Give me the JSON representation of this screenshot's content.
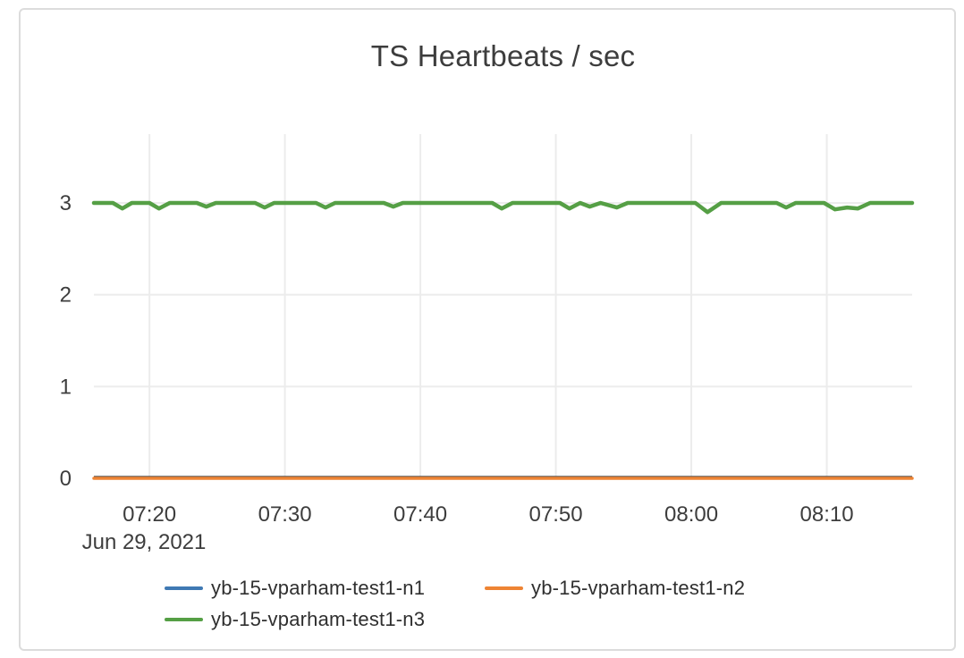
{
  "chart_data": {
    "type": "line",
    "title": "TS Heartbeats / sec",
    "grid": true,
    "legend_position": "bottom",
    "x_axis": {
      "date_label": "Jun 29, 2021",
      "range": [
        435.9,
        496.3
      ],
      "ticks": [
        {
          "t": 440,
          "label": "07:20"
        },
        {
          "t": 450,
          "label": "07:30"
        },
        {
          "t": 460,
          "label": "07:40"
        },
        {
          "t": 470,
          "label": "07:50"
        },
        {
          "t": 480,
          "label": "08:00"
        },
        {
          "t": 490,
          "label": "08:10"
        }
      ]
    },
    "y_axis": {
      "range": [
        0,
        3.75
      ],
      "ticks": [
        0,
        1,
        2,
        3
      ]
    },
    "series": [
      {
        "name": "yb-15-vparham-test1-n1",
        "color": "#3f79b3",
        "points": [
          [
            435.9,
            0
          ],
          [
            496.3,
            0
          ]
        ]
      },
      {
        "name": "yb-15-vparham-test1-n2",
        "color": "#ee8434",
        "points": [
          [
            435.9,
            0
          ],
          [
            496.3,
            0
          ]
        ]
      },
      {
        "name": "yb-15-vparham-test1-n3",
        "color": "#559f45",
        "points": [
          [
            435.9,
            3
          ],
          [
            437.3,
            3
          ],
          [
            438,
            2.94
          ],
          [
            438.7,
            3
          ],
          [
            440,
            3
          ],
          [
            440.7,
            2.94
          ],
          [
            441.5,
            3
          ],
          [
            443.5,
            3
          ],
          [
            444.2,
            2.96
          ],
          [
            444.9,
            3
          ],
          [
            447.8,
            3
          ],
          [
            448.5,
            2.95
          ],
          [
            449.2,
            3
          ],
          [
            452.3,
            3
          ],
          [
            453,
            2.95
          ],
          [
            453.7,
            3
          ],
          [
            457.3,
            3
          ],
          [
            458,
            2.96
          ],
          [
            458.7,
            3
          ],
          [
            465.3,
            3
          ],
          [
            466,
            2.94
          ],
          [
            466.8,
            3
          ],
          [
            470.3,
            3
          ],
          [
            471,
            2.94
          ],
          [
            471.8,
            3
          ],
          [
            472.5,
            2.96
          ],
          [
            473.3,
            3
          ],
          [
            474.5,
            2.95
          ],
          [
            475.3,
            3
          ],
          [
            478,
            3
          ],
          [
            480.3,
            3
          ],
          [
            481.2,
            2.9
          ],
          [
            482.2,
            3
          ],
          [
            486.3,
            3
          ],
          [
            487,
            2.95
          ],
          [
            487.7,
            3
          ],
          [
            489.8,
            3
          ],
          [
            490.6,
            2.93
          ],
          [
            491.5,
            2.95
          ],
          [
            492.3,
            2.94
          ],
          [
            493.2,
            3
          ],
          [
            496.3,
            3
          ]
        ]
      }
    ]
  }
}
